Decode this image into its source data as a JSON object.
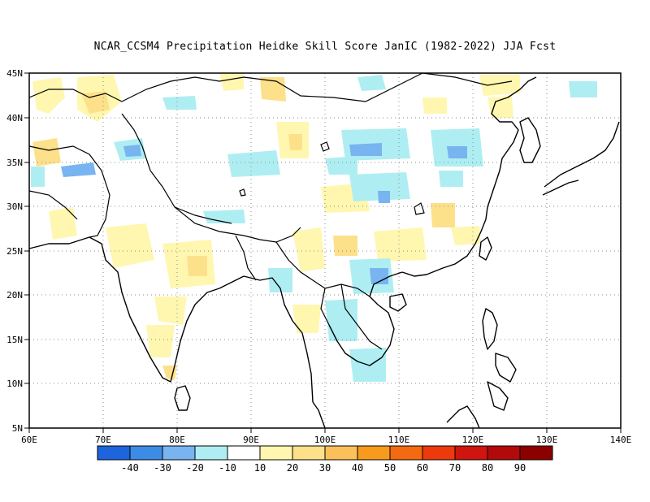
{
  "title": "NCAR_CCSM4  Precipitation Heidke Skill Score JanIC (1982-2022) JJA Fcst",
  "map": {
    "lon_range": [
      60,
      140
    ],
    "lat_range": [
      5,
      45
    ],
    "lon_ticks": [
      "60E",
      "70E",
      "80E",
      "90E",
      "100E",
      "110E",
      "120E",
      "130E",
      "140E"
    ],
    "lat_ticks": [
      "45N",
      "40N",
      "35N",
      "30N",
      "25N",
      "20N",
      "15N",
      "10N",
      "5N"
    ],
    "grid": "dotted"
  },
  "colorbar": {
    "colors": [
      "#1e64dc",
      "#3c8ce6",
      "#78b4f0",
      "#aeeef2",
      "#ffffff",
      "#fff7b0",
      "#fde18a",
      "#fbc05a",
      "#f89a1c",
      "#f36a10",
      "#ec3a0c",
      "#d0140e",
      "#b20a0a",
      "#8c0000"
    ],
    "labels": [
      "-40",
      "-30",
      "-20",
      "-10",
      "10",
      "20",
      "30",
      "40",
      "50",
      "60",
      "70",
      "80",
      "90"
    ]
  },
  "colors": {
    "neg_strong": "#3c8ce6",
    "neg_mid": "#78b4f0",
    "neg_weak": "#aeeef2",
    "pos_weak": "#fff7b0",
    "pos_mid": "#fde18a",
    "pos_strong": "#fbc05a"
  }
}
